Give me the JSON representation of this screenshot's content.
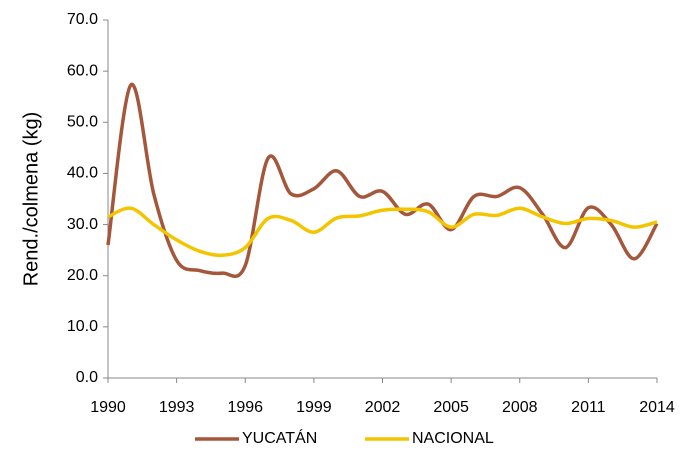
{
  "chart_data": {
    "type": "line",
    "y_label": "Rend./colmena (kg)",
    "x": [
      1990,
      1991,
      1992,
      1993,
      1994,
      1995,
      1996,
      1997,
      1998,
      1999,
      2000,
      2001,
      2002,
      2003,
      2004,
      2005,
      2006,
      2007,
      2008,
      2009,
      2010,
      2011,
      2012,
      2013,
      2014
    ],
    "series": [
      {
        "name": "YUCATÁN",
        "color": "#a5573b",
        "values": [
          26,
          57.3,
          36,
          23,
          21,
          20.5,
          22,
          43,
          36,
          37,
          40.5,
          35.5,
          36.5,
          32,
          34,
          29,
          35.5,
          35.5,
          37.2,
          32,
          25.5,
          33.3,
          30,
          23.3,
          30.2
        ]
      },
      {
        "name": "NACIONAL",
        "color": "#f2c500",
        "values": [
          31.5,
          33.2,
          30,
          27,
          24.8,
          24,
          25.5,
          31.2,
          30.8,
          28.5,
          31.3,
          31.7,
          32.8,
          33,
          32.5,
          29.5,
          32,
          31.8,
          33.2,
          31.5,
          30.2,
          31.2,
          30.8,
          29.5,
          30.5
        ]
      }
    ],
    "xlim": [
      1990,
      2014
    ],
    "xticks": [
      1990,
      1993,
      1996,
      1999,
      2002,
      2005,
      2008,
      2011,
      2014
    ],
    "ylim": [
      0,
      70
    ],
    "yticks": [
      {
        "value": 0,
        "label": "0.0"
      },
      {
        "value": 10,
        "label": "10.0"
      },
      {
        "value": 20,
        "label": "20.0"
      },
      {
        "value": 30,
        "label": "30.0"
      },
      {
        "value": 40,
        "label": "40.0"
      },
      {
        "value": 50,
        "label": "50.0"
      },
      {
        "value": 60,
        "label": "60.0"
      },
      {
        "value": 70,
        "label": "70.0"
      }
    ],
    "legend": "bottom"
  }
}
